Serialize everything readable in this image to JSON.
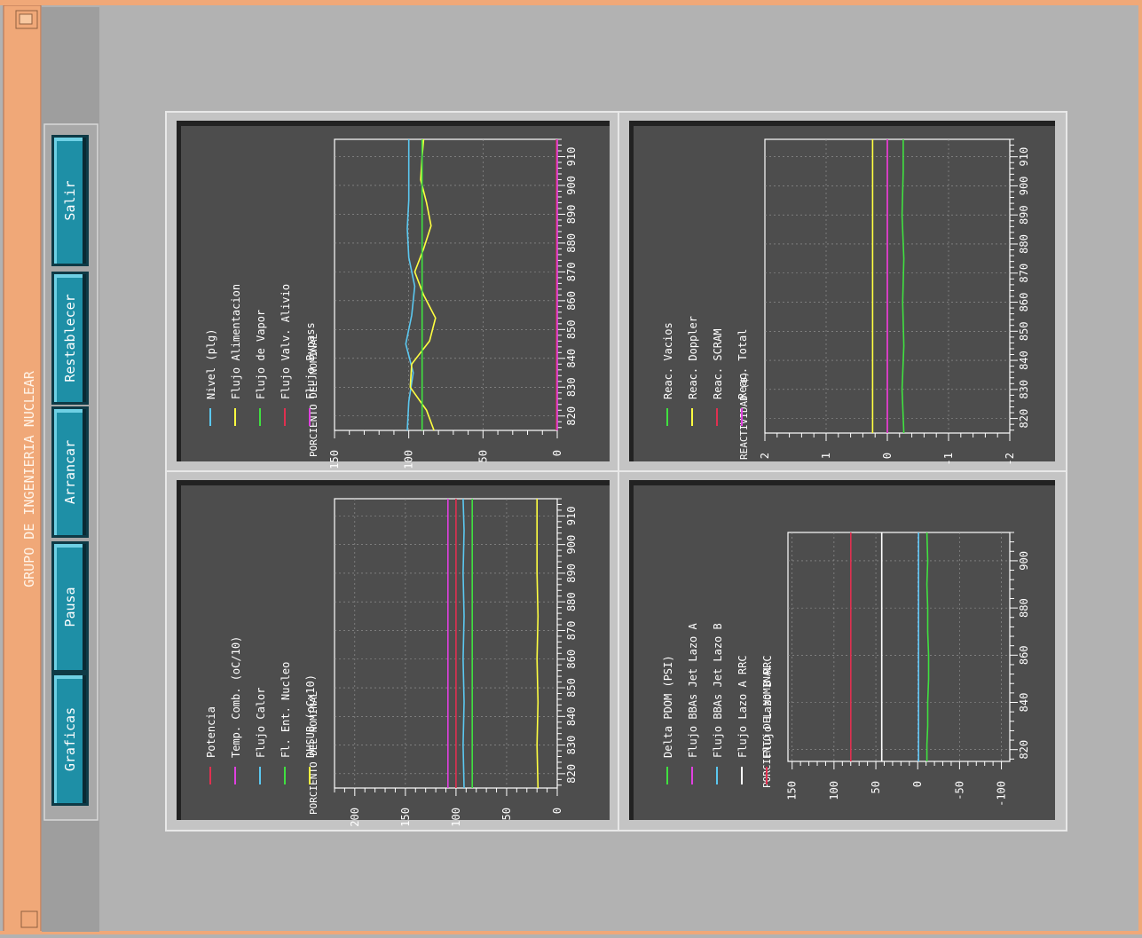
{
  "window": {
    "title": "GRUPO DE INGENIERIA NUCLEAR"
  },
  "toolbar": {
    "buttons": [
      {
        "id": "graficas",
        "label": "Graficas"
      },
      {
        "id": "pausa",
        "label": "Pausa"
      },
      {
        "id": "arrancar",
        "label": "Arrancar"
      },
      {
        "id": "restablecer",
        "label": "Restablecer"
      },
      {
        "id": "salir",
        "label": "Salir"
      }
    ]
  },
  "colors": {
    "accent_frame": "#f0a878",
    "panel_bg": "#4d4d4d",
    "button_face": "#1e8fa6",
    "cyan": "#5bc8f0",
    "yellow": "#ffff40",
    "green": "#40e040",
    "red": "#e03050",
    "magenta": "#e040e0",
    "white": "#ffffff"
  },
  "chart_data": [
    {
      "id": "core",
      "type": "line",
      "ylabel": "PORCIENTO DEL NOMINAL",
      "xlim": [
        815,
        916
      ],
      "x_ticks": [
        820,
        830,
        840,
        850,
        860,
        870,
        880,
        890,
        900,
        910
      ],
      "ylim": [
        0,
        220
      ],
      "y_ticks": [
        0,
        50,
        100,
        150,
        200
      ],
      "legend": "top",
      "series": [
        {
          "name": "Potencia",
          "color": "red",
          "x": [
            815,
            916
          ],
          "y": [
            100,
            100
          ]
        },
        {
          "name": "Temp. Comb. (oC/10)",
          "color": "magenta",
          "x": [
            815,
            916
          ],
          "y": [
            108,
            108
          ]
        },
        {
          "name": "Flujo Calor",
          "color": "cyan",
          "x": [
            815,
            830,
            845,
            860,
            875,
            890,
            905,
            916
          ],
          "y": [
            92,
            93,
            92,
            93,
            92,
            93,
            92,
            93
          ]
        },
        {
          "name": "Fl. Ent. Nucleo",
          "color": "green",
          "x": [
            815,
            916
          ],
          "y": [
            84,
            84
          ]
        },
        {
          "name": "DHSUB (oCx10)",
          "color": "yellow",
          "x": [
            815,
            830,
            845,
            860,
            875,
            890,
            905,
            916
          ],
          "y": [
            19,
            20,
            19,
            20,
            19,
            20,
            20,
            20
          ]
        }
      ]
    },
    {
      "id": "vapor",
      "type": "line",
      "ylabel": "PORCIENTO DEL NOMINAL",
      "xlim": [
        815,
        916
      ],
      "x_ticks": [
        820,
        830,
        840,
        850,
        860,
        870,
        880,
        890,
        900,
        910
      ],
      "ylim": [
        0,
        150
      ],
      "y_ticks": [
        0,
        50,
        100,
        150
      ],
      "legend": "top",
      "series": [
        {
          "name": "Nivel (plg)",
          "color": "cyan",
          "x": [
            815,
            825,
            835,
            845,
            855,
            865,
            875,
            885,
            895,
            905,
            916
          ],
          "y": [
            101,
            100,
            97,
            102,
            98,
            96,
            100,
            101,
            100,
            100,
            100
          ]
        },
        {
          "name": "Flujo Alimentacion",
          "color": "yellow",
          "x": [
            815,
            822,
            830,
            838,
            846,
            854,
            862,
            870,
            878,
            886,
            894,
            902,
            910,
            916
          ],
          "y": [
            83,
            88,
            99,
            98,
            86,
            82,
            90,
            96,
            90,
            85,
            88,
            92,
            91,
            90
          ]
        },
        {
          "name": "Flujo de Vapor",
          "color": "green",
          "x": [
            815,
            916
          ],
          "y": [
            91,
            91
          ]
        },
        {
          "name": "Flujo Valv. Alivio",
          "color": "red",
          "x": [
            815,
            916
          ],
          "y": [
            0.5,
            0.5
          ]
        },
        {
          "name": "Flujo Bypass",
          "color": "magenta",
          "x": [
            815,
            916
          ],
          "y": [
            0,
            0
          ]
        }
      ]
    },
    {
      "id": "loops",
      "type": "line",
      "ylabel": "PORCIENTO DEL NOMINAL",
      "xlim": [
        815,
        912
      ],
      "x_ticks": [
        820,
        840,
        860,
        880,
        900
      ],
      "ylim": [
        -110,
        155
      ],
      "y_ticks": [
        -100,
        -50,
        0,
        50,
        100,
        150
      ],
      "legend": "top",
      "series": [
        {
          "name": "Delta PDOM (PSI)",
          "color": "green",
          "x": [
            815,
            822,
            830,
            840,
            850,
            860,
            870,
            880,
            890,
            900,
            912
          ],
          "y": [
            -11,
            -11,
            -12,
            -12,
            -13,
            -13,
            -12,
            -12,
            -11,
            -12,
            -11
          ]
        },
        {
          "name": "Flujo BBAs Jet Lazo A",
          "color": "magenta",
          "x": [
            815,
            912
          ],
          "y": [
            -1,
            -1
          ]
        },
        {
          "name": "Flujo BBAs Jet Lazo B",
          "color": "cyan",
          "x": [
            815,
            912
          ],
          "y": [
            -1,
            -1
          ]
        },
        {
          "name": "Flujo Lazo A RRC",
          "color": "white",
          "x": [
            815,
            912
          ],
          "y": [
            43,
            43
          ]
        },
        {
          "name": "Flujo Lazo B RRC",
          "color": "red",
          "x": [
            815,
            912
          ],
          "y": [
            80,
            80
          ]
        }
      ]
    },
    {
      "id": "reactivity",
      "type": "line",
      "ylabel": "REACTIVIDAD ($)",
      "xlim": [
        815,
        916
      ],
      "x_ticks": [
        820,
        830,
        840,
        850,
        860,
        870,
        880,
        890,
        900,
        910
      ],
      "ylim": [
        -2,
        2
      ],
      "y_ticks": [
        -2,
        -1,
        0,
        1,
        2
      ],
      "legend": "top",
      "series": [
        {
          "name": "Reac. Vacios",
          "color": "green",
          "x": [
            815,
            830,
            845,
            860,
            875,
            890,
            905,
            916
          ],
          "y": [
            -0.27,
            -0.24,
            -0.27,
            -0.25,
            -0.27,
            -0.24,
            -0.26,
            -0.26
          ]
        },
        {
          "name": "Reac. Doppler",
          "color": "yellow",
          "x": [
            815,
            916
          ],
          "y": [
            0.24,
            0.24
          ]
        },
        {
          "name": "Reac. SCRAM",
          "color": "red",
          "x": [
            815,
            916
          ],
          "y": [
            0,
            0
          ]
        },
        {
          "name": "Reac. Total",
          "color": "magenta",
          "x": [
            815,
            916
          ],
          "y": [
            0,
            0
          ]
        }
      ]
    }
  ]
}
